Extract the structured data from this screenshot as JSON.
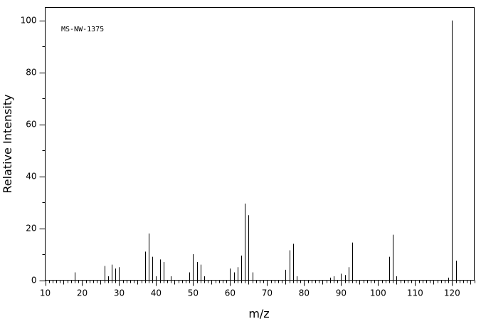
{
  "chart_data": {
    "type": "bar",
    "annotation": "MS-NW-1375",
    "xlabel": "m/z",
    "ylabel": "Relative Intensity",
    "xlim": [
      10,
      126
    ],
    "ylim": [
      0,
      105
    ],
    "xticks": [
      10,
      20,
      30,
      40,
      50,
      60,
      70,
      80,
      90,
      100,
      110,
      120
    ],
    "yticks": [
      0,
      20,
      40,
      60,
      80,
      100
    ],
    "grid": false,
    "peaks": {
      "mz": [
        18,
        26,
        27,
        28,
        29,
        30,
        37,
        38,
        39,
        40,
        41,
        42,
        44,
        49,
        50,
        51,
        52,
        53,
        60,
        61,
        62,
        63,
        64,
        65,
        66,
        75,
        76,
        77,
        78,
        87,
        88,
        90,
        91,
        92,
        93,
        103,
        104,
        105,
        119,
        120,
        121
      ],
      "intensity": [
        3,
        5.5,
        1.5,
        6,
        4.5,
        5,
        11,
        18,
        9,
        1.5,
        8,
        7,
        1.5,
        3,
        10,
        7,
        6,
        1.5,
        4.5,
        3,
        5,
        9.5,
        29.5,
        25,
        3,
        4,
        11.5,
        14,
        1.5,
        1,
        1.5,
        2.5,
        2,
        5,
        14.5,
        9,
        17.5,
        1.5,
        1,
        100,
        7.5
      ]
    }
  }
}
